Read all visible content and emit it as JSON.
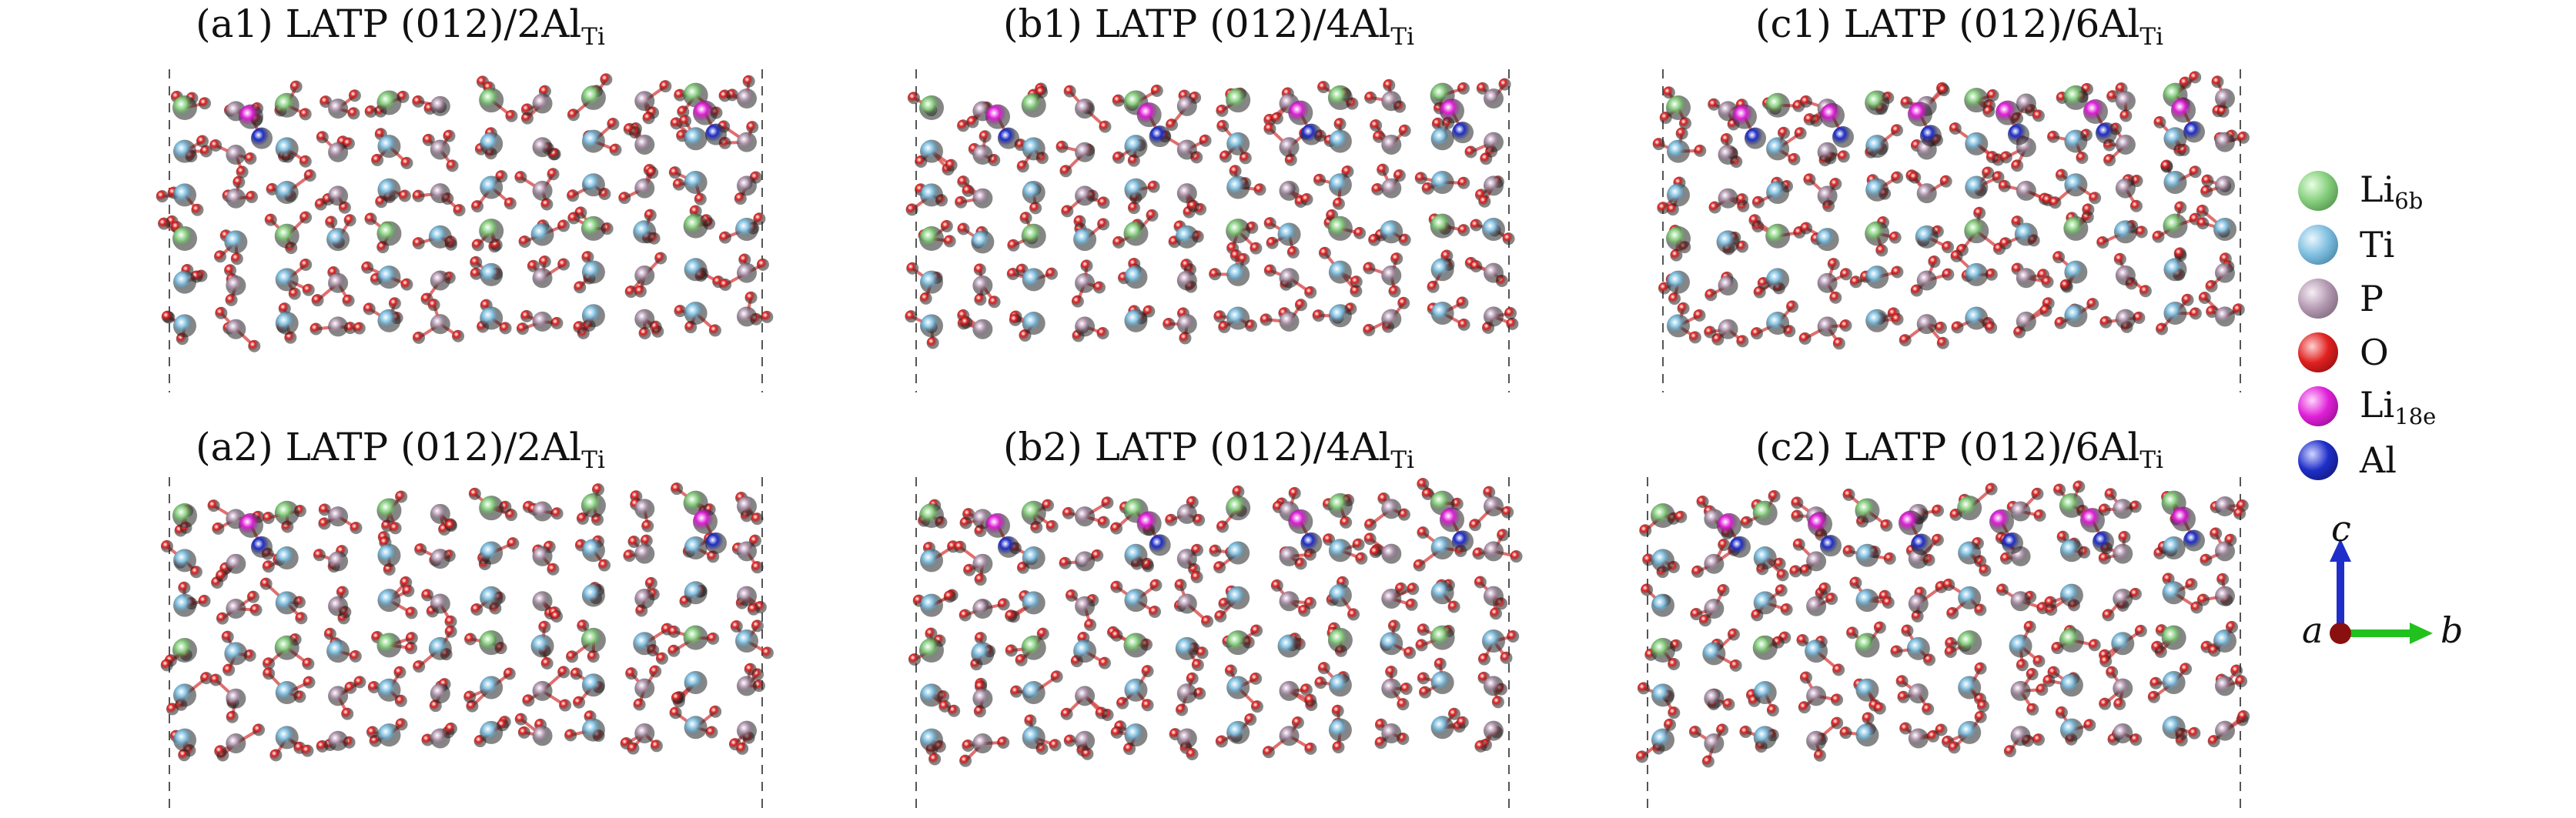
{
  "panels": [
    {
      "title_main": "(a1) LATP (012)/2Al",
      "title_sub": "Ti"
    },
    {
      "title_main": "(b1) LATP (012)/4Al",
      "title_sub": "Ti"
    },
    {
      "title_main": "(c1) LATP (012)/6Al",
      "title_sub": "Ti"
    },
    {
      "title_main": "(a2) LATP (012)/2Al",
      "title_sub": "Ti"
    },
    {
      "title_main": "(b2) LATP (012)/4Al",
      "title_sub": "Ti"
    },
    {
      "title_main": "(c2) LATP (012)/6Al",
      "title_sub": "Ti"
    }
  ],
  "legend": [
    {
      "main": "Li",
      "sub": "6b",
      "color": "#86cf7e"
    },
    {
      "main": "Ti",
      "sub": "",
      "color": "#7fbfe0"
    },
    {
      "main": "P",
      "sub": "",
      "color": "#b49ab2"
    },
    {
      "main": "O",
      "sub": "",
      "color": "#e02020"
    },
    {
      "main": "Li",
      "sub": "18e",
      "color": "#e020d8"
    },
    {
      "main": "Al",
      "sub": "",
      "color": "#1f2ec8"
    }
  ],
  "axes": {
    "c": "c",
    "a": "a",
    "b": "b"
  },
  "colors": {
    "li6b": "#86cf7e",
    "ti": "#7fbfe0",
    "p": "#b49ab2",
    "o": "#e02020",
    "li18e": "#e020d8",
    "al": "#1f2ec8",
    "axis_c": "#1f2ec8",
    "axis_b": "#22c21e",
    "axis_a": "#8a1010"
  }
}
